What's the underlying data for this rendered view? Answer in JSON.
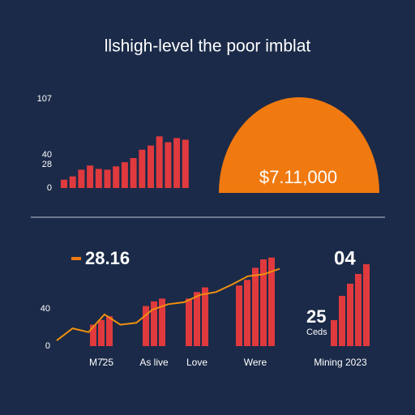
{
  "title": "llshigh-level the poor imblat",
  "gauge_label": "$7.11,000",
  "callouts": {
    "main": "28.16",
    "right": "04",
    "small_value": "25",
    "small_caption": "Ceds"
  },
  "chart_data": [
    {
      "type": "bar",
      "color": "#e03a3e",
      "values": [
        10,
        14,
        22,
        27,
        23,
        22,
        26,
        31,
        36,
        46,
        51,
        62,
        55,
        60,
        58
      ],
      "ylim": [
        0,
        107
      ],
      "yticks": [
        0,
        28,
        40,
        107
      ]
    },
    {
      "type": "bar_line",
      "groups": [
        {
          "label": "M7̂25",
          "values": [
            23,
            28,
            32
          ]
        },
        {
          "label": "As live",
          "values": [
            43,
            48,
            51
          ]
        },
        {
          "label": "Love",
          "values": [
            51,
            58,
            63
          ]
        },
        {
          "label": "Were",
          "values": [
            65,
            71,
            84,
            93,
            95
          ]
        }
      ],
      "bar_color": "#e03a3e",
      "line": {
        "color": "#f0900f",
        "values": [
          6,
          19,
          15,
          34,
          23,
          25,
          39,
          45,
          47,
          55,
          58,
          66,
          75,
          77,
          83
        ]
      },
      "ylim": [
        0,
        100
      ],
      "yticks": [
        0,
        40
      ]
    },
    {
      "type": "bar",
      "color": "#e03a3e",
      "label": "Mining 2023",
      "values": [
        32,
        62,
        77,
        89,
        101
      ],
      "ylim": [
        0,
        110
      ]
    }
  ]
}
